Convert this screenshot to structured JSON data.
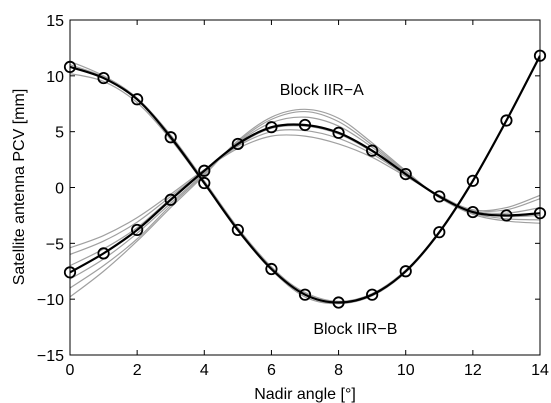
{
  "chart_data": {
    "type": "line",
    "title": "",
    "xlabel": "Nadir angle [°]",
    "ylabel": "Satellite antenna PCV [mm]",
    "xlim": [
      0,
      14
    ],
    "ylim": [
      -15,
      15
    ],
    "xticks": [
      0,
      2,
      4,
      6,
      8,
      10,
      12,
      14
    ],
    "yticks": [
      -15,
      -10,
      -5,
      0,
      5,
      10,
      15
    ],
    "xtick_labels": [
      "0",
      "2",
      "4",
      "6",
      "8",
      "10",
      "12",
      "14"
    ],
    "ytick_labels": [
      "−15",
      "−10",
      "−5",
      "0",
      "5",
      "10",
      "15"
    ],
    "grid": false,
    "x": [
      0,
      1,
      2,
      3,
      4,
      5,
      6,
      7,
      8,
      9,
      10,
      11,
      12,
      13,
      14
    ],
    "annotations": [
      {
        "text": "Block IIR−A",
        "x": 7.5,
        "y": 8.3
      },
      {
        "text": "Block IIR−B",
        "x": 8.5,
        "y": -13.1
      }
    ],
    "series": [
      {
        "name": "",
        "role": "mean",
        "color": "#000000",
        "marker": "circle",
        "values": [
          10.8,
          9.8,
          7.9,
          4.5,
          0.4,
          -3.8,
          -7.3,
          -9.6,
          -10.3,
          -9.6,
          -7.5,
          -4.0,
          0.6,
          6.0,
          11.8
        ]
      },
      {
        "name": "",
        "role": "mean",
        "color": "#000000",
        "marker": "circle",
        "values": [
          -7.6,
          -5.9,
          -3.8,
          -1.1,
          1.5,
          3.9,
          5.4,
          5.6,
          4.9,
          3.3,
          1.2,
          -0.8,
          -2.2,
          -2.5,
          -2.3
        ]
      },
      {
        "name": "",
        "role": "individual",
        "color": "#a0a0a0",
        "values": [
          11.3,
          10.0,
          8.0,
          4.6,
          0.5,
          -3.8,
          -7.2,
          -9.4,
          -10.2,
          -9.5,
          -7.4,
          -4.0,
          0.6,
          6.0,
          11.8
        ]
      },
      {
        "name": "",
        "role": "individual",
        "color": "#a0a0a0",
        "values": [
          10.2,
          9.5,
          7.6,
          4.3,
          0.3,
          -3.9,
          -7.4,
          -9.8,
          -10.4,
          -9.7,
          -7.6,
          -4.1,
          0.5,
          6.0,
          11.7
        ]
      },
      {
        "name": "",
        "role": "individual",
        "color": "#a0a0a0",
        "values": [
          11.0,
          9.9,
          8.0,
          4.7,
          0.6,
          -3.6,
          -7.1,
          -9.5,
          -10.3,
          -9.6,
          -7.5,
          -4.0,
          0.6,
          6.0,
          11.8
        ]
      },
      {
        "name": "",
        "role": "individual",
        "color": "#a0a0a0",
        "values": [
          -5.4,
          -4.3,
          -2.7,
          -0.6,
          1.6,
          3.5,
          4.6,
          4.6,
          3.9,
          2.7,
          1.0,
          -0.7,
          -2.0,
          -1.8,
          -0.7
        ]
      },
      {
        "name": "",
        "role": "individual",
        "color": "#a0a0a0",
        "values": [
          -6.0,
          -4.8,
          -3.1,
          -0.8,
          1.5,
          3.7,
          5.0,
          5.1,
          4.4,
          3.0,
          1.1,
          -0.8,
          -2.0,
          -2.0,
          -1.0
        ]
      },
      {
        "name": "",
        "role": "individual",
        "color": "#a0a0a0",
        "values": [
          -7.0,
          -5.5,
          -3.6,
          -1.0,
          1.4,
          3.8,
          5.3,
          5.5,
          4.8,
          3.2,
          1.2,
          -0.8,
          -2.1,
          -2.3,
          -1.8
        ]
      },
      {
        "name": "",
        "role": "individual",
        "color": "#a0a0a0",
        "values": [
          -8.2,
          -6.4,
          -4.1,
          -1.4,
          1.3,
          4.0,
          5.8,
          6.3,
          5.5,
          3.6,
          1.3,
          -0.8,
          -2.2,
          -2.6,
          -2.5
        ]
      },
      {
        "name": "",
        "role": "individual",
        "color": "#a0a0a0",
        "values": [
          -9.0,
          -7.0,
          -4.6,
          -1.6,
          1.2,
          4.1,
          6.1,
          6.8,
          5.9,
          3.8,
          1.4,
          -0.9,
          -2.3,
          -2.8,
          -2.9
        ]
      },
      {
        "name": "",
        "role": "individual",
        "color": "#a0a0a0",
        "values": [
          -9.8,
          -7.5,
          -4.8,
          -1.8,
          1.1,
          4.2,
          6.3,
          7.0,
          6.2,
          4.0,
          1.5,
          -0.9,
          -2.4,
          -3.0,
          -3.2
        ]
      }
    ]
  }
}
